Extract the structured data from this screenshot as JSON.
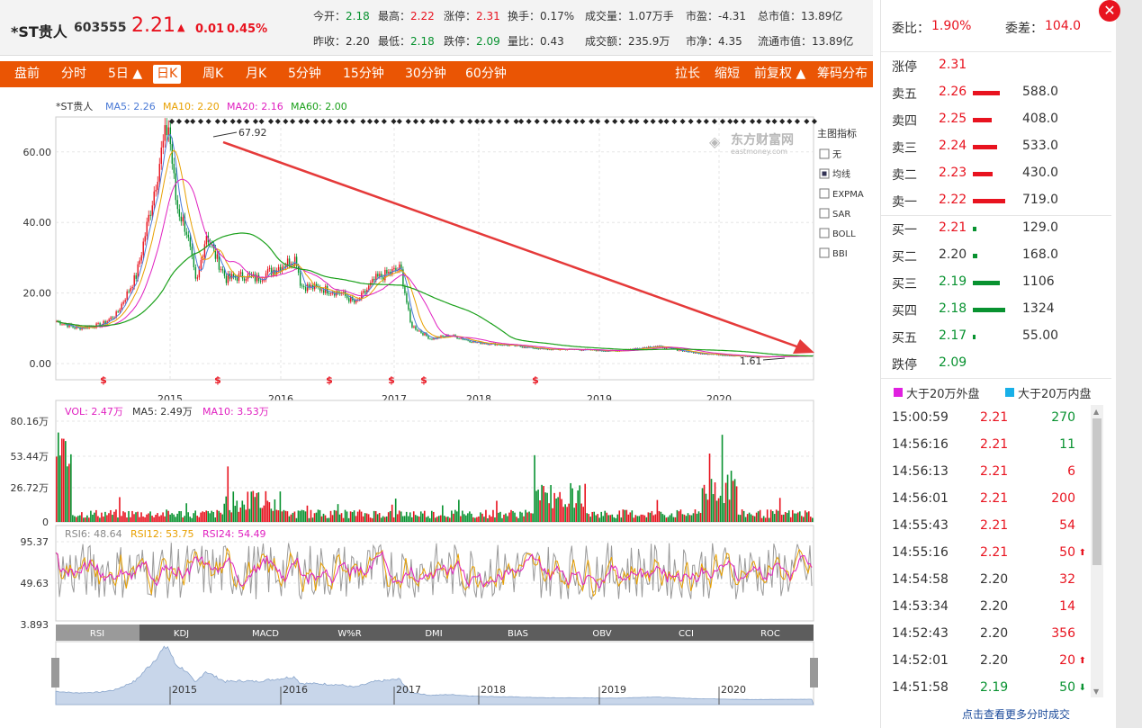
{
  "stock": {
    "name": "*ST贵人",
    "code": "603555",
    "price": "2.21",
    "arrow": "▲",
    "change": "0.01",
    "change_pct": "0.45%"
  },
  "quote": [
    {
      "label": "今开：",
      "value": "2.18",
      "color": "green"
    },
    {
      "label": "最高：",
      "value": "2.22",
      "color": "red"
    },
    {
      "label": "涨停：",
      "value": "2.31",
      "color": "red"
    },
    {
      "label": "换手：",
      "value": "0.17%",
      "color": ""
    },
    {
      "label": "成交量：",
      "value": "1.07万手",
      "color": ""
    },
    {
      "label": "市盈：",
      "value": "-4.31",
      "color": ""
    },
    {
      "label": "总市值：",
      "value": "13.89亿",
      "color": ""
    },
    {
      "label": "昨收：",
      "value": "2.20",
      "color": ""
    },
    {
      "label": "最低：",
      "value": "2.18",
      "color": "green"
    },
    {
      "label": "跌停：",
      "value": "2.09",
      "color": "green"
    },
    {
      "label": "量比：",
      "value": "0.43",
      "color": ""
    },
    {
      "label": "成交额：",
      "value": "235.9万",
      "color": ""
    },
    {
      "label": "市净：",
      "value": "4.35",
      "color": ""
    },
    {
      "label": "流通市值：",
      "value": "13.89亿",
      "color": ""
    }
  ],
  "tabs_left": [
    "盘前",
    "分时",
    "5日 ▲",
    "日K",
    "周K",
    "月K",
    "5分钟",
    "15分钟",
    "30分钟",
    "60分钟"
  ],
  "tabs_right": [
    "拉长",
    "缩短",
    "前复权 ▲",
    "筹码分布"
  ],
  "active_tab": "日K",
  "main_legend": {
    "name": "*ST贵人",
    "ma5": "MA5: 2.26",
    "ma10": "MA10: 2.20",
    "ma20": "MA20: 2.16",
    "ma60": "MA60: 2.00"
  },
  "main_axis": [
    "60.00",
    "40.00",
    "20.00",
    "0.00"
  ],
  "years": [
    "2015",
    "2016",
    "2017",
    "2018",
    "2019",
    "2020"
  ],
  "high_label": "67.92",
  "low_label": "1.61",
  "watermark": "东方财富网",
  "watermark_sub": "eastmoney.com",
  "indicator_title": "主图指标",
  "indicators": [
    {
      "label": "无",
      "checked": false
    },
    {
      "label": "均线",
      "checked": true
    },
    {
      "label": "EXPMA",
      "checked": false
    },
    {
      "label": "SAR",
      "checked": false
    },
    {
      "label": "BOLL",
      "checked": false
    },
    {
      "label": "BBI",
      "checked": false
    }
  ],
  "vol_legend": {
    "vol": "VOL: 2.47万",
    "ma5": "MA5: 2.49万",
    "ma10": "MA10: 3.53万"
  },
  "vol_axis": [
    "80.16万",
    "53.44万",
    "26.72万",
    "0"
  ],
  "rsi_legend": {
    "rsi6": "RSI6: 48.64",
    "rsi12": "RSI12: 53.75",
    "rsi24": "RSI24: 54.49"
  },
  "rsi_axis": [
    "95.37",
    "49.63",
    "3.893"
  ],
  "sub_tabs": [
    "RSI",
    "KDJ",
    "MACD",
    "W%R",
    "DMI",
    "BIAS",
    "OBV",
    "CCI",
    "ROC"
  ],
  "nav_years": [
    "2015",
    "2016",
    "2017",
    "2018",
    "2019",
    "2020"
  ],
  "ratio": {
    "wb_label": "委比：",
    "wb": "1.90%",
    "wc_label": "委差：",
    "wc": "104.0"
  },
  "limit_up": {
    "label": "涨停",
    "value": "2.31"
  },
  "asks": [
    {
      "label": "卖五",
      "price": "2.26",
      "vol": "588.0",
      "bar": 0.82
    },
    {
      "label": "卖四",
      "price": "2.25",
      "vol": "408.0",
      "bar": 0.57
    },
    {
      "label": "卖三",
      "price": "2.24",
      "vol": "533.0",
      "bar": 0.74
    },
    {
      "label": "卖二",
      "price": "2.23",
      "vol": "430.0",
      "bar": 0.6
    },
    {
      "label": "卖一",
      "price": "2.22",
      "vol": "719.0",
      "bar": 1.0
    }
  ],
  "bids": [
    {
      "label": "买一",
      "price": "2.21",
      "vol": "129.0",
      "bar": 0.1,
      "pc": "red"
    },
    {
      "label": "买二",
      "price": "2.20",
      "vol": "168.0",
      "bar": 0.13,
      "pc": ""
    },
    {
      "label": "买三",
      "price": "2.19",
      "vol": "1106",
      "bar": 0.84,
      "pc": "green"
    },
    {
      "label": "买四",
      "price": "2.18",
      "vol": "1324",
      "bar": 1.0,
      "pc": "green"
    },
    {
      "label": "买五",
      "price": "2.17",
      "vol": "55.00",
      "bar": 0.04,
      "pc": "green"
    }
  ],
  "limit_down": {
    "label": "跌停",
    "value": "2.09"
  },
  "big_legend": {
    "out": "大于20万外盘",
    "in": "大于20万内盘"
  },
  "ticks": [
    {
      "time": "15:00:59",
      "price": "2.21",
      "pc": "red",
      "vol": "270",
      "vc": "green",
      "arrow": ""
    },
    {
      "time": "14:56:16",
      "price": "2.21",
      "pc": "red",
      "vol": "11",
      "vc": "green",
      "arrow": ""
    },
    {
      "time": "14:56:13",
      "price": "2.21",
      "pc": "red",
      "vol": "6",
      "vc": "red",
      "arrow": ""
    },
    {
      "time": "14:56:01",
      "price": "2.21",
      "pc": "red",
      "vol": "200",
      "vc": "red",
      "arrow": ""
    },
    {
      "time": "14:55:43",
      "price": "2.21",
      "pc": "red",
      "vol": "54",
      "vc": "red",
      "arrow": ""
    },
    {
      "time": "14:55:16",
      "price": "2.21",
      "pc": "red",
      "vol": "50",
      "vc": "red",
      "arrow": "⬆"
    },
    {
      "time": "14:54:58",
      "price": "2.20",
      "pc": "",
      "vol": "32",
      "vc": "red",
      "arrow": ""
    },
    {
      "time": "14:53:34",
      "price": "2.20",
      "pc": "",
      "vol": "14",
      "vc": "red",
      "arrow": ""
    },
    {
      "time": "14:52:43",
      "price": "2.20",
      "pc": "",
      "vol": "356",
      "vc": "red",
      "arrow": ""
    },
    {
      "time": "14:52:01",
      "price": "2.20",
      "pc": "",
      "vol": "20",
      "vc": "red",
      "arrow": "⬆"
    },
    {
      "time": "14:51:58",
      "price": "2.19",
      "pc": "green",
      "vol": "50",
      "vc": "green",
      "arrow": "⬇"
    }
  ],
  "more_link": "点击查看更多分时成交",
  "colors": {
    "accent": "#ea5504",
    "red": "#e8131f",
    "green": "#089230",
    "ma5": "#4a7ad6",
    "ma10": "#e8a000",
    "ma20": "#e020c0",
    "ma60": "#1aa01a"
  }
}
